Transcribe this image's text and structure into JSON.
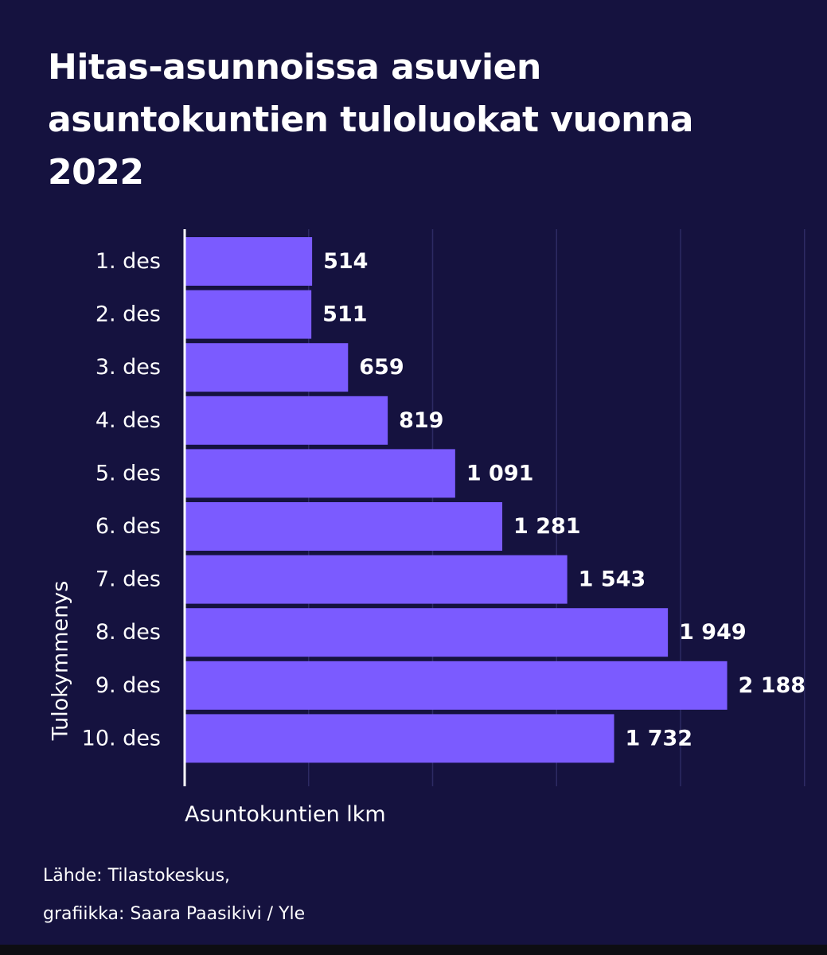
{
  "chart_data": {
    "type": "bar",
    "orientation": "horizontal",
    "title": "Hitas-asunnoissa asuvien asuntokuntien tuloluokat vuonna 2022",
    "categories": [
      "1. des",
      "2. des",
      "3. des",
      "4. des",
      "5. des",
      "6. des",
      "7. des",
      "8. des",
      "9. des",
      "10. des"
    ],
    "values": [
      514,
      511,
      659,
      819,
      1091,
      1281,
      1543,
      1949,
      2188,
      1732
    ],
    "value_labels": [
      "514",
      "511",
      "659",
      "819",
      "1 091",
      "1 281",
      "1 543",
      "1 949",
      "2 188",
      "1 732"
    ],
    "xlabel": "Asuntokuntien lkm",
    "ylabel": "Tulokymmenys",
    "xlim": [
      0,
      2500
    ],
    "x_gridlines": [
      500,
      1000,
      1500,
      2000,
      2500
    ],
    "grid": true,
    "bar_color": "#7b5bff",
    "background_color": "#15123f"
  },
  "source": {
    "line1": "Lähde: Tilastokeskus,",
    "line2": "grafiikka: Saara Paasikivi / Yle"
  }
}
